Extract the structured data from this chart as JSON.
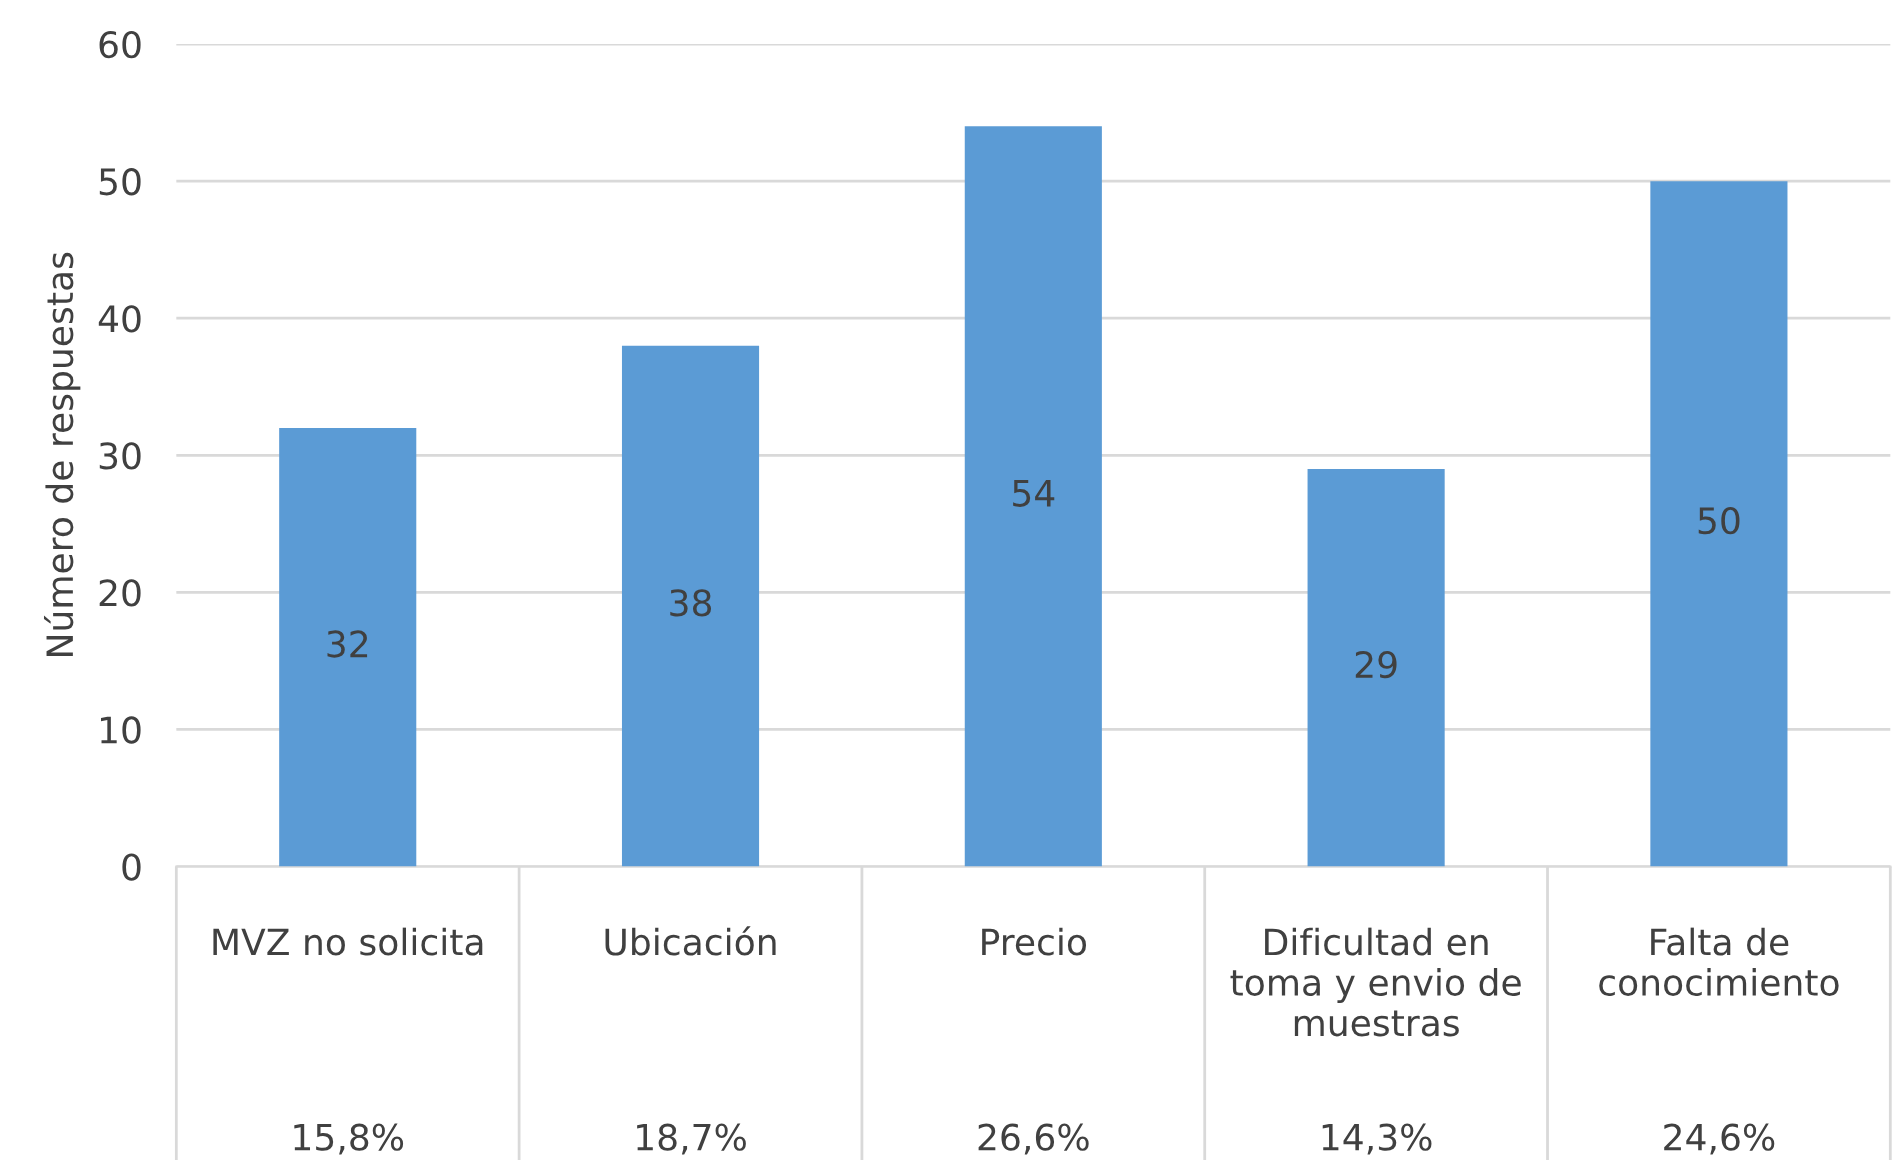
{
  "chart_data": {
    "type": "bar",
    "ylabel": "Número de respuestas",
    "categories": [
      "MVZ no solicita",
      "Ubicación",
      "Precio",
      "Dificultad en\ntoma y envio de\nmuestras",
      "Falta de\nconocimiento"
    ],
    "values": [
      32,
      38,
      54,
      29,
      50
    ],
    "color": "#5b9bd5",
    "ylim": [
      0,
      60
    ],
    "yticks": [
      0,
      10,
      20,
      30,
      40,
      50,
      60
    ],
    "grid": "y",
    "data_labels": true,
    "annotations": [
      "15,8%",
      "18,7%",
      "26,6%",
      "14,3%",
      "24,6%"
    ]
  }
}
